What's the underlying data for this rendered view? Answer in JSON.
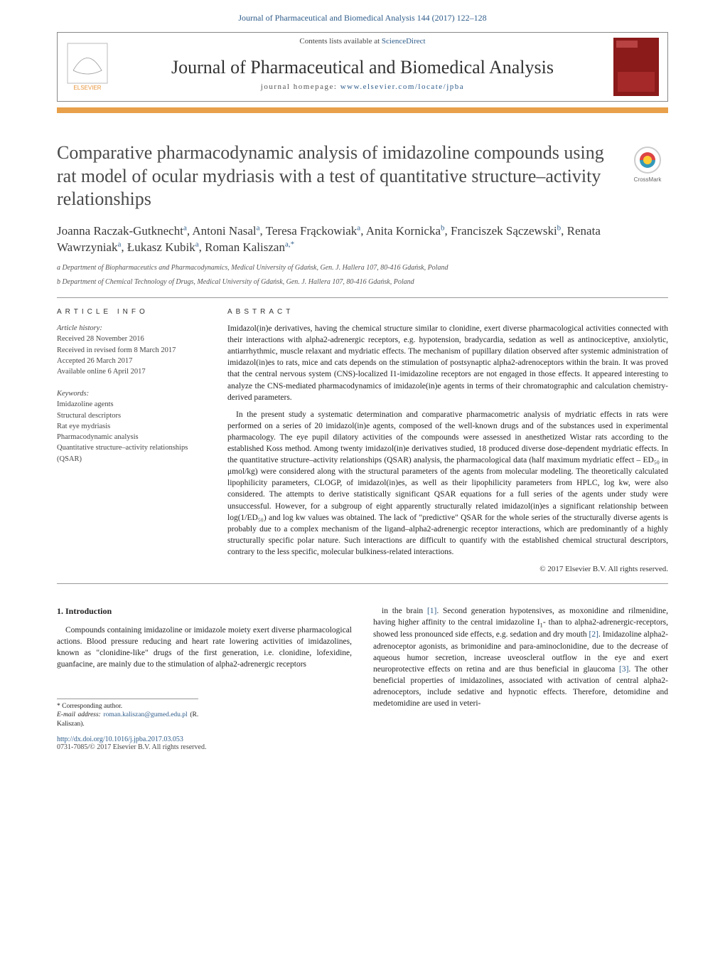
{
  "header": {
    "running_head": "Journal of Pharmaceutical and Biomedical Analysis 144 (2017) 122–128",
    "contents_text": "Contents lists available at ",
    "contents_link": "ScienceDirect",
    "journal_name": "Journal of Pharmaceutical and Biomedical Analysis",
    "homepage_label": "journal homepage: ",
    "homepage_url": "www.elsevier.com/locate/jpba",
    "elsevier_label": "ELSEVIER",
    "crossmark_label": "CrossMark"
  },
  "article": {
    "title": "Comparative pharmacodynamic analysis of imidazoline compounds using rat model of ocular mydriasis with a test of quantitative structure–activity relationships",
    "authors_html": "Joanna Raczak-Gutknecht<sup>a</sup>, Antoni Nasal<sup>a</sup>, Teresa Frąckowiak<sup>a</sup>, Anita Kornicka<sup>b</sup>, Franciszek Sączewski<sup>b</sup>, Renata Wawrzyniak<sup>a</sup>, Łukasz Kubik<sup>a</sup>, Roman Kaliszan<sup>a,*</sup>",
    "affiliations": [
      "a Department of Biopharmaceutics and Pharmacodynamics, Medical University of Gdańsk, Gen. J. Hallera 107, 80-416 Gdańsk, Poland",
      "b Department of Chemical Technology of Drugs, Medical University of Gdańsk, Gen. J. Hallera 107, 80-416 Gdańsk, Poland"
    ],
    "info_label": "ARTICLE INFO",
    "abstract_label": "ABSTRACT",
    "history": {
      "label": "Article history:",
      "lines": [
        "Received 28 November 2016",
        "Received in revised form 8 March 2017",
        "Accepted 26 March 2017",
        "Available online 6 April 2017"
      ]
    },
    "keywords": {
      "label": "Keywords:",
      "items": [
        "Imidazoline agents",
        "Structural descriptors",
        "Rat eye mydriasis",
        "Pharmacodynamic analysis",
        "Quantitative structure–activity relationships (QSAR)"
      ]
    },
    "abstract_paragraphs": [
      "Imidazol(in)e derivatives, having the chemical structure similar to clonidine, exert diverse pharmacological activities connected with their interactions with alpha2-adrenergic receptors, e.g. hypotension, bradycardia, sedation as well as antinociceptive, anxiolytic, antiarrhythmic, muscle relaxant and mydriatic effects. The mechanism of pupillary dilation observed after systemic administration of imidazol(in)es to rats, mice and cats depends on the stimulation of postsynaptic alpha2-adrenoceptors within the brain. It was proved that the central nervous system (CNS)-localized I1-imidazoline receptors are not engaged in those effects. It appeared interesting to analyze the CNS-mediated pharmacodynamics of imidazole(in)e agents in terms of their chromatographic and calculation chemistry-derived parameters.",
      "In the present study a systematic determination and comparative pharmacometric analysis of mydriatic effects in rats were performed on a series of 20 imidazol(in)e agents, composed of the well-known drugs and of the substances used in experimental pharmacology. The eye pupil dilatory activities of the compounds were assessed in anesthetized Wistar rats according to the established Koss method. Among twenty imidazol(in)e derivatives studied, 18 produced diverse dose-dependent mydriatic effects. In the quantitative structure–activity relationships (QSAR) analysis, the pharmacological data (half maximum mydriatic effect – ED₅₀ in μmol/kg) were considered along with the structural parameters of the agents from molecular modeling. The theoretically calculated lipophilicity parameters, CLOGP, of imidazol(in)es, as well as their lipophilicity parameters from HPLC, log kw, were also considered. The attempts to derive statistically significant QSAR equations for a full series of the agents under study were unsuccessful. However, for a subgroup of eight apparently structurally related imidazol(in)es a significant relationship between log(1/ED₅₀) and log kw values was obtained. The lack of \"predictive\" QSAR for the whole series of the structurally diverse agents is probably due to a complex mechanism of the ligand–alpha2-adrenergic receptor interactions, which are predominantly of a highly structurally specific polar nature. Such interactions are difficult to quantify with the established chemical structural descriptors, contrary to the less specific, molecular bulkiness-related interactions."
    ],
    "copyright": "© 2017 Elsevier B.V. All rights reserved."
  },
  "body": {
    "section_title": "1. Introduction",
    "col1_text": "Compounds containing imidazoline or imidazole moiety exert diverse pharmacological actions. Blood pressure reducing and heart rate lowering activities of imidazolines, known as \"clonidine-like\" drugs of the first generation, i.e. clonidine, lofexidine, guanfacine, are mainly due to the stimulation of alpha2-adrenergic receptors",
    "col2_text": "in the brain [1]. Second generation hypotensives, as moxonidine and rilmenidine, having higher affinity to the central imidazoline I₁- than to alpha2-adrenergic-receptors, showed less pronounced side effects, e.g. sedation and dry mouth [2]. Imidazoline alpha2-adrenoceptor agonists, as brimonidine and para-aminoclonidine, due to the decrease of aqueous humor secretion, increase uveoscleral outflow in the eye and exert neuroprotective effects on retina and are thus beneficial in glaucoma [3]. The other beneficial properties of imidazolines, associated with activation of central alpha2-adrenoceptors, include sedative and hypnotic effects. Therefore, detomidine and medetomidine are used in veteri-"
  },
  "footnote": {
    "corresponding": "* Corresponding author.",
    "email_label": "E-mail address: ",
    "email": "roman.kaliszan@gumed.edu.pl",
    "email_person": " (R. Kaliszan)."
  },
  "doi": {
    "url": "http://dx.doi.org/10.1016/j.jpba.2017.03.053",
    "issn_line": "0731-7085/© 2017 Elsevier B.V. All rights reserved."
  },
  "colors": {
    "link": "#2e5c8a",
    "band": "#e8a04a",
    "cover": "#8b1a1a"
  }
}
